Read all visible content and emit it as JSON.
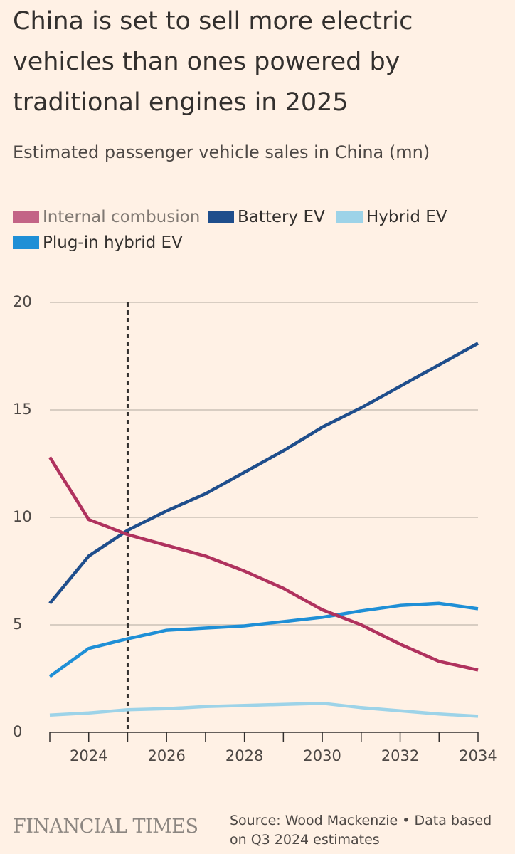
{
  "header": {
    "title": "China is set to sell more electric vehicles than ones powered by traditional engines in 2025",
    "subtitle": "Estimated passenger vehicle sales in China (mn)"
  },
  "legend": {
    "items": [
      {
        "label": "Internal combusion",
        "color": "#c36486",
        "muted": true
      },
      {
        "label": "Battery EV",
        "color": "#1f4e8c"
      },
      {
        "label": "Hybrid EV",
        "color": "#9dd3e8"
      },
      {
        "label": "Plug-in hybrid EV",
        "color": "#1f8fd6"
      }
    ]
  },
  "chart_data": {
    "type": "line",
    "x": [
      2023,
      2024,
      2025,
      2026,
      2027,
      2028,
      2029,
      2030,
      2031,
      2032,
      2033,
      2034
    ],
    "xticks": [
      "2024",
      "2026",
      "2028",
      "2030",
      "2032",
      "2034"
    ],
    "yticks": [
      "0",
      "5",
      "10",
      "15",
      "20"
    ],
    "ylim": [
      0,
      20
    ],
    "xlim": [
      2023,
      2034
    ],
    "grid": true,
    "legend_position": "top",
    "annotation": {
      "type": "vertical-dashed-line",
      "x": 2025
    },
    "series": [
      {
        "name": "Internal combusion",
        "color": "#b0325e",
        "values": [
          12.8,
          9.9,
          9.2,
          8.7,
          8.2,
          7.5,
          6.7,
          5.7,
          5.0,
          4.1,
          3.3,
          2.9
        ]
      },
      {
        "name": "Battery EV",
        "color": "#1f4e8c",
        "values": [
          6.0,
          8.2,
          9.4,
          10.3,
          11.1,
          12.1,
          13.1,
          14.2,
          15.1,
          16.1,
          17.1,
          18.1
        ]
      },
      {
        "name": "Hybrid EV",
        "color": "#9dd3e8",
        "values": [
          0.8,
          0.9,
          1.05,
          1.1,
          1.2,
          1.25,
          1.3,
          1.35,
          1.15,
          1.0,
          0.85,
          0.75
        ]
      },
      {
        "name": "Plug-in hybrid EV",
        "color": "#1f8fd6",
        "values": [
          2.6,
          3.9,
          4.35,
          4.75,
          4.85,
          4.95,
          5.15,
          5.35,
          5.65,
          5.9,
          6.0,
          5.75
        ]
      }
    ]
  },
  "footer": {
    "logo": "FINANCIAL TIMES",
    "source": "Source: Wood Mackenzie • Data based on Q3 2024 estimates"
  }
}
